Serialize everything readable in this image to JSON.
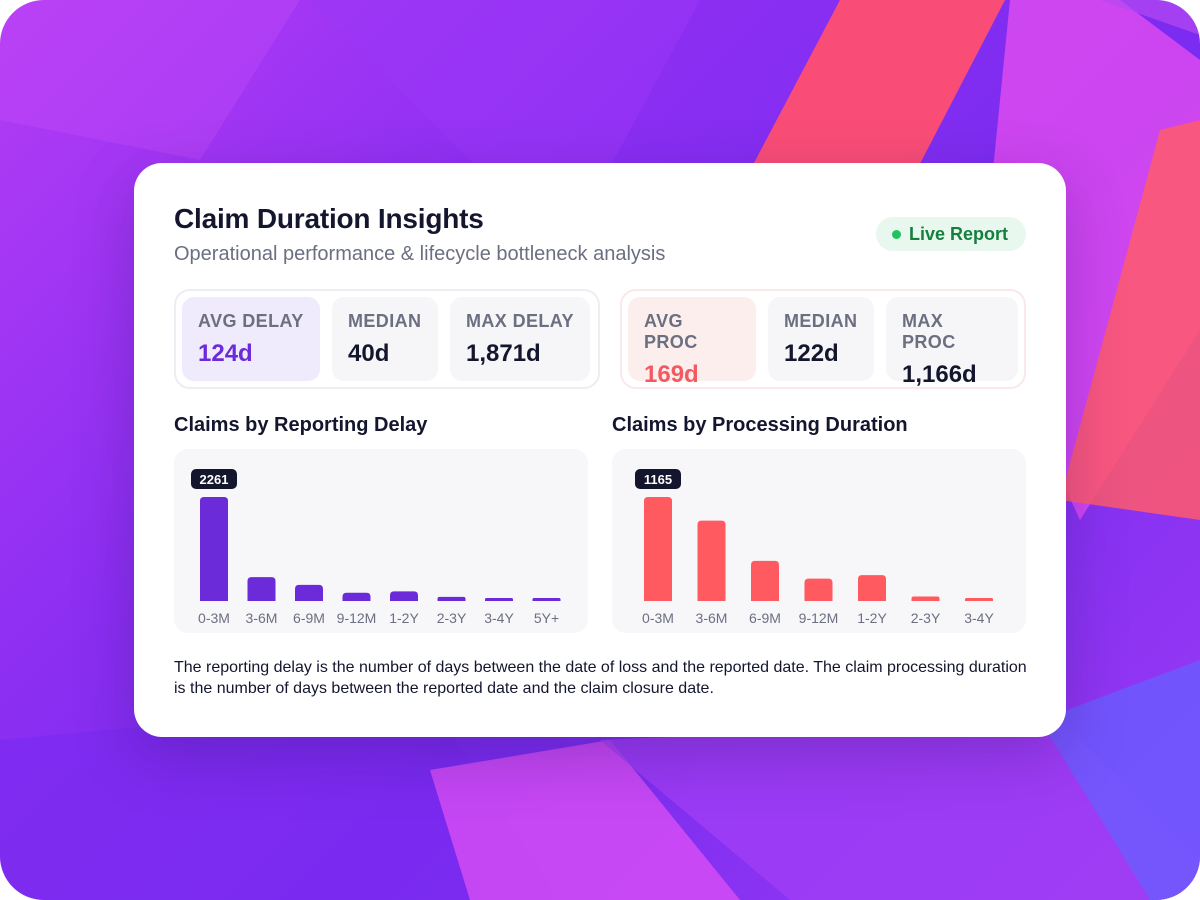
{
  "header": {
    "title": "Claim Duration Insights",
    "subtitle": "Operational performance & lifecycle bottleneck analysis",
    "badge": "Live Report"
  },
  "stats_delay": [
    {
      "label": "AVG DELAY",
      "value": "124d"
    },
    {
      "label": "MEDIAN",
      "value": "40d"
    },
    {
      "label": "MAX DELAY",
      "value": "1,871d"
    }
  ],
  "stats_processing": [
    {
      "label": "AVG PROC",
      "value": "169d"
    },
    {
      "label": "MEDIAN",
      "value": "122d"
    },
    {
      "label": "MAX PROC",
      "value": "1,166d"
    }
  ],
  "colors": {
    "purple": "#6c2bd9",
    "red": "#ff5a5f",
    "live_green": "#1fc45f"
  },
  "chart_data": [
    {
      "type": "bar",
      "title": "Claims by Reporting Delay",
      "categories": [
        "0-3M",
        "3-6M",
        "6-9M",
        "9-12M",
        "1-2Y",
        "2-3Y",
        "3-4Y",
        "5Y+"
      ],
      "values": [
        2261,
        520,
        350,
        180,
        210,
        90,
        40,
        40
      ],
      "data_labels": [
        "2261"
      ],
      "color": "#6c2bd9"
    },
    {
      "type": "bar",
      "title": "Claims by Processing Duration",
      "categories": [
        "0-3M",
        "3-6M",
        "6-9M",
        "9-12M",
        "1-2Y",
        "2-3Y",
        "3-4Y"
      ],
      "values": [
        1165,
        900,
        450,
        250,
        290,
        50,
        30
      ],
      "data_labels": [
        "1165"
      ],
      "color": "#ff5a5f"
    }
  ],
  "footnote": "The reporting delay is the number of days between the date of loss and the reported date. The claim processing duration is the number of days between the reported date and the claim closure date."
}
